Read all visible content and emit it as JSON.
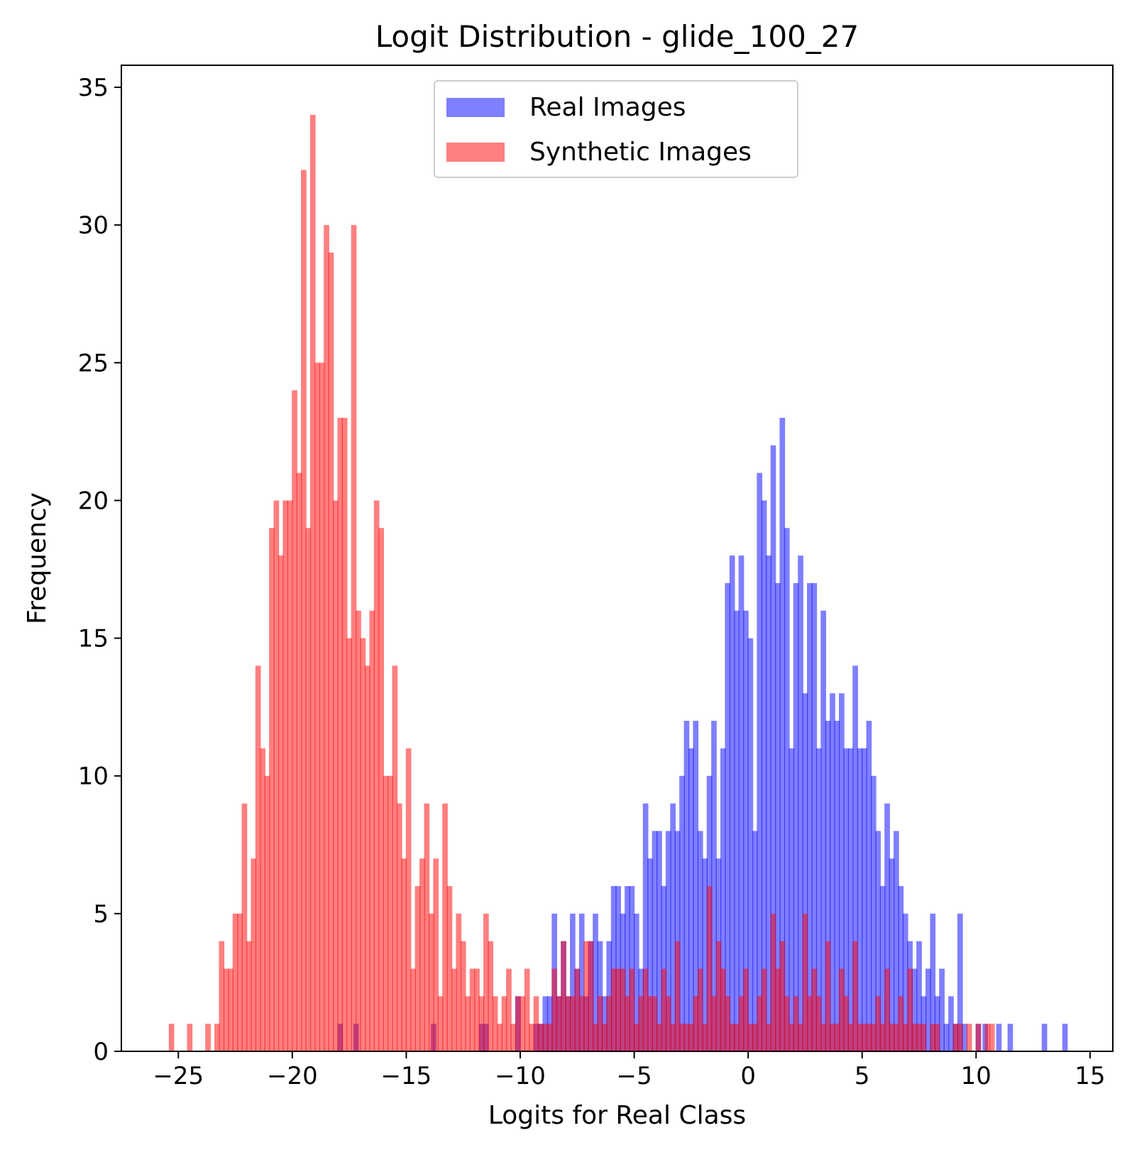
{
  "chart_data": {
    "type": "bar",
    "title": "Logit Distribution - glide_100_27",
    "xlabel": "Logits for Real Class",
    "ylabel": "Frequency",
    "xlim": [
      -27.5,
      16
    ],
    "ylim": [
      0,
      35.8
    ],
    "xticks": [
      -25,
      -20,
      -15,
      -10,
      -5,
      0,
      5,
      10,
      15
    ],
    "xtick_labels": [
      "−25",
      "−20",
      "−15",
      "−10",
      "−5",
      "0",
      "5",
      "10",
      "15"
    ],
    "yticks": [
      0,
      5,
      10,
      15,
      20,
      25,
      30,
      35
    ],
    "ytick_labels": [
      "0",
      "5",
      "10",
      "15",
      "20",
      "25",
      "30",
      "35"
    ],
    "bin_width": 0.24,
    "legend_position": "top-center",
    "grid": false,
    "series": [
      {
        "name": "Real Images",
        "color": "#0000ff",
        "opacity": 0.5,
        "bins": [
          [
            -17.9,
            1
          ],
          [
            -17.2,
            1
          ],
          [
            -13.8,
            1
          ],
          [
            -11.7,
            1
          ],
          [
            -11.5,
            1
          ],
          [
            -10.1,
            2
          ],
          [
            -9.3,
            1
          ],
          [
            -9.1,
            1
          ],
          [
            -8.9,
            2
          ],
          [
            -8.7,
            2
          ],
          [
            -8.5,
            5
          ],
          [
            -8.3,
            2
          ],
          [
            -8.1,
            4
          ],
          [
            -7.9,
            2
          ],
          [
            -7.7,
            5
          ],
          [
            -7.5,
            3
          ],
          [
            -7.3,
            5
          ],
          [
            -7.1,
            2
          ],
          [
            -6.9,
            4
          ],
          [
            -6.7,
            5
          ],
          [
            -6.5,
            4
          ],
          [
            -6.3,
            2
          ],
          [
            -6.1,
            4
          ],
          [
            -5.9,
            6
          ],
          [
            -5.7,
            6
          ],
          [
            -5.5,
            5
          ],
          [
            -5.3,
            6
          ],
          [
            -5.1,
            6
          ],
          [
            -4.9,
            5
          ],
          [
            -4.7,
            3
          ],
          [
            -4.5,
            9
          ],
          [
            -4.3,
            7
          ],
          [
            -4.1,
            8
          ],
          [
            -3.9,
            8
          ],
          [
            -3.7,
            6
          ],
          [
            -3.5,
            8
          ],
          [
            -3.3,
            9
          ],
          [
            -3.1,
            8
          ],
          [
            -2.9,
            10
          ],
          [
            -2.7,
            12
          ],
          [
            -2.5,
            11
          ],
          [
            -2.3,
            12
          ],
          [
            -2.1,
            8
          ],
          [
            -1.9,
            7
          ],
          [
            -1.7,
            10
          ],
          [
            -1.5,
            12
          ],
          [
            -1.3,
            7
          ],
          [
            -1.1,
            11
          ],
          [
            -0.9,
            17
          ],
          [
            -0.7,
            18
          ],
          [
            -0.5,
            16
          ],
          [
            -0.3,
            18
          ],
          [
            -0.1,
            16
          ],
          [
            0.1,
            15
          ],
          [
            0.3,
            8
          ],
          [
            0.5,
            21
          ],
          [
            0.7,
            20
          ],
          [
            0.9,
            18
          ],
          [
            1.1,
            22
          ],
          [
            1.3,
            17
          ],
          [
            1.5,
            23
          ],
          [
            1.7,
            19
          ],
          [
            1.9,
            11
          ],
          [
            2.1,
            17
          ],
          [
            2.3,
            18
          ],
          [
            2.5,
            13
          ],
          [
            2.7,
            17
          ],
          [
            2.9,
            17
          ],
          [
            3.1,
            11
          ],
          [
            3.3,
            16
          ],
          [
            3.5,
            12
          ],
          [
            3.7,
            13
          ],
          [
            3.9,
            12
          ],
          [
            4.1,
            13
          ],
          [
            4.3,
            11
          ],
          [
            4.5,
            11
          ],
          [
            4.7,
            14
          ],
          [
            4.9,
            11
          ],
          [
            5.1,
            11
          ],
          [
            5.3,
            12
          ],
          [
            5.5,
            10
          ],
          [
            5.7,
            8
          ],
          [
            5.9,
            6
          ],
          [
            6.1,
            9
          ],
          [
            6.3,
            7
          ],
          [
            6.5,
            8
          ],
          [
            6.7,
            6
          ],
          [
            6.9,
            5
          ],
          [
            7.1,
            4
          ],
          [
            7.3,
            3
          ],
          [
            7.5,
            4
          ],
          [
            7.7,
            2
          ],
          [
            7.9,
            3
          ],
          [
            8.1,
            5
          ],
          [
            8.3,
            2
          ],
          [
            8.5,
            3
          ],
          [
            8.7,
            1
          ],
          [
            8.9,
            2
          ],
          [
            9.1,
            1
          ],
          [
            9.3,
            5
          ],
          [
            9.5,
            1
          ],
          [
            10.1,
            1
          ],
          [
            10.4,
            1
          ],
          [
            11.0,
            1
          ],
          [
            11.5,
            1
          ],
          [
            13.0,
            1
          ],
          [
            13.9,
            1
          ]
        ]
      },
      {
        "name": "Synthetic Images",
        "color": "#ff0000",
        "opacity": 0.5,
        "bins": [
          [
            -25.3,
            1
          ],
          [
            -24.5,
            1
          ],
          [
            -23.7,
            1
          ],
          [
            -23.3,
            1
          ],
          [
            -23.1,
            4
          ],
          [
            -22.9,
            3
          ],
          [
            -22.7,
            3
          ],
          [
            -22.5,
            5
          ],
          [
            -22.3,
            5
          ],
          [
            -22.1,
            9
          ],
          [
            -21.9,
            4
          ],
          [
            -21.7,
            7
          ],
          [
            -21.5,
            14
          ],
          [
            -21.3,
            11
          ],
          [
            -21.1,
            10
          ],
          [
            -20.9,
            19
          ],
          [
            -20.7,
            20
          ],
          [
            -20.5,
            18
          ],
          [
            -20.3,
            20
          ],
          [
            -20.1,
            20
          ],
          [
            -19.9,
            24
          ],
          [
            -19.7,
            21
          ],
          [
            -19.5,
            32
          ],
          [
            -19.3,
            19
          ],
          [
            -19.1,
            34
          ],
          [
            -18.9,
            25
          ],
          [
            -18.7,
            25
          ],
          [
            -18.5,
            30
          ],
          [
            -18.3,
            29
          ],
          [
            -18.1,
            20
          ],
          [
            -17.9,
            23
          ],
          [
            -17.7,
            23
          ],
          [
            -17.5,
            15
          ],
          [
            -17.3,
            30
          ],
          [
            -17.1,
            16
          ],
          [
            -16.9,
            15
          ],
          [
            -16.7,
            14
          ],
          [
            -16.5,
            16
          ],
          [
            -16.3,
            20
          ],
          [
            -16.1,
            19
          ],
          [
            -15.9,
            10
          ],
          [
            -15.7,
            10
          ],
          [
            -15.5,
            14
          ],
          [
            -15.3,
            9
          ],
          [
            -15.1,
            7
          ],
          [
            -14.9,
            11
          ],
          [
            -14.7,
            3
          ],
          [
            -14.5,
            6
          ],
          [
            -14.3,
            7
          ],
          [
            -14.1,
            9
          ],
          [
            -13.9,
            5
          ],
          [
            -13.7,
            7
          ],
          [
            -13.5,
            2
          ],
          [
            -13.3,
            9
          ],
          [
            -13.1,
            6
          ],
          [
            -12.9,
            3
          ],
          [
            -12.7,
            5
          ],
          [
            -12.5,
            4
          ],
          [
            -12.3,
            2
          ],
          [
            -12.1,
            3
          ],
          [
            -11.9,
            3
          ],
          [
            -11.7,
            2
          ],
          [
            -11.5,
            5
          ],
          [
            -11.3,
            4
          ],
          [
            -11.1,
            2
          ],
          [
            -10.9,
            1
          ],
          [
            -10.7,
            2
          ],
          [
            -10.5,
            3
          ],
          [
            -10.3,
            1
          ],
          [
            -10.1,
            2
          ],
          [
            -9.9,
            2
          ],
          [
            -9.7,
            3
          ],
          [
            -9.5,
            1
          ],
          [
            -9.3,
            2
          ],
          [
            -9.1,
            1
          ],
          [
            -8.9,
            1
          ],
          [
            -8.7,
            1
          ],
          [
            -8.5,
            3
          ],
          [
            -8.3,
            2
          ],
          [
            -8.1,
            4
          ],
          [
            -7.9,
            2
          ],
          [
            -7.7,
            2
          ],
          [
            -7.5,
            3
          ],
          [
            -7.3,
            2
          ],
          [
            -7.1,
            4
          ],
          [
            -6.9,
            4
          ],
          [
            -6.7,
            1
          ],
          [
            -6.5,
            2
          ],
          [
            -6.3,
            1
          ],
          [
            -6.1,
            2
          ],
          [
            -5.9,
            3
          ],
          [
            -5.7,
            3
          ],
          [
            -5.5,
            3
          ],
          [
            -5.3,
            2
          ],
          [
            -5.1,
            3
          ],
          [
            -4.9,
            1
          ],
          [
            -4.7,
            2
          ],
          [
            -4.5,
            3
          ],
          [
            -4.3,
            2
          ],
          [
            -4.1,
            2
          ],
          [
            -3.9,
            1
          ],
          [
            -3.7,
            3
          ],
          [
            -3.5,
            2
          ],
          [
            -3.3,
            1
          ],
          [
            -3.1,
            4
          ],
          [
            -2.9,
            1
          ],
          [
            -2.7,
            1
          ],
          [
            -2.5,
            1
          ],
          [
            -2.3,
            2
          ],
          [
            -2.1,
            3
          ],
          [
            -1.9,
            1
          ],
          [
            -1.7,
            6
          ],
          [
            -1.5,
            2
          ],
          [
            -1.3,
            4
          ],
          [
            -1.1,
            3
          ],
          [
            -0.9,
            2
          ],
          [
            -0.7,
            1
          ],
          [
            -0.5,
            1
          ],
          [
            -0.3,
            2
          ],
          [
            -0.1,
            3
          ],
          [
            0.1,
            1
          ],
          [
            0.3,
            1
          ],
          [
            0.5,
            2
          ],
          [
            0.7,
            3
          ],
          [
            0.9,
            1
          ],
          [
            1.1,
            5
          ],
          [
            1.3,
            3
          ],
          [
            1.5,
            4
          ],
          [
            1.7,
            2
          ],
          [
            1.9,
            1
          ],
          [
            2.1,
            2
          ],
          [
            2.3,
            1
          ],
          [
            2.5,
            5
          ],
          [
            2.7,
            2
          ],
          [
            2.9,
            3
          ],
          [
            3.1,
            2
          ],
          [
            3.3,
            1
          ],
          [
            3.5,
            4
          ],
          [
            3.7,
            1
          ],
          [
            3.9,
            1
          ],
          [
            4.1,
            3
          ],
          [
            4.3,
            2
          ],
          [
            4.5,
            1
          ],
          [
            4.7,
            4
          ],
          [
            4.9,
            1
          ],
          [
            5.1,
            1
          ],
          [
            5.3,
            1
          ],
          [
            5.5,
            1
          ],
          [
            5.7,
            2
          ],
          [
            5.9,
            1
          ],
          [
            6.1,
            3
          ],
          [
            6.3,
            1
          ],
          [
            6.5,
            1
          ],
          [
            6.7,
            2
          ],
          [
            6.9,
            1
          ],
          [
            7.1,
            3
          ],
          [
            7.3,
            1
          ],
          [
            7.5,
            1
          ],
          [
            7.7,
            1
          ],
          [
            8.1,
            1
          ],
          [
            8.3,
            1
          ],
          [
            9.1,
            1
          ],
          [
            9.3,
            1
          ],
          [
            9.7,
            1
          ],
          [
            10.1,
            1
          ],
          [
            10.5,
            1
          ],
          [
            10.7,
            1
          ]
        ]
      }
    ]
  }
}
